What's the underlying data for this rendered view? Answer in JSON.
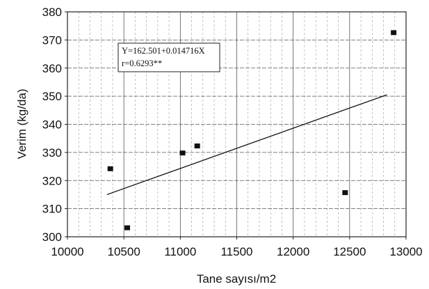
{
  "chart_data": {
    "type": "scatter",
    "title": "",
    "xlabel": "Tane sayısı/m2",
    "ylabel": "Verim (kg/da)",
    "xlim": [
      10000,
      13000
    ],
    "ylim": [
      300,
      380
    ],
    "xticks": [
      10000,
      10500,
      11000,
      11500,
      12000,
      12500,
      13000
    ],
    "yticks": [
      300,
      310,
      320,
      330,
      340,
      350,
      360,
      370,
      380
    ],
    "grid": true,
    "minor_gridlines_x": true,
    "legend": "none",
    "series": [
      {
        "points": [
          {
            "x": 10380,
            "y": 324.2
          },
          {
            "x": 10530,
            "y": 303.2
          },
          {
            "x": 11020,
            "y": 329.8
          },
          {
            "x": 11150,
            "y": 332.3
          },
          {
            "x": 12460,
            "y": 315.7
          },
          {
            "x": 12890,
            "y": 372.6
          }
        ],
        "color": "#111111"
      }
    ],
    "trendline": {
      "x_start": 10350,
      "x_end": 12830,
      "y_start": 315,
      "y_end": 350.5
    },
    "annotation": {
      "line1": "Y=162.501+0.014716X",
      "line2": "r=0.6293**"
    }
  }
}
